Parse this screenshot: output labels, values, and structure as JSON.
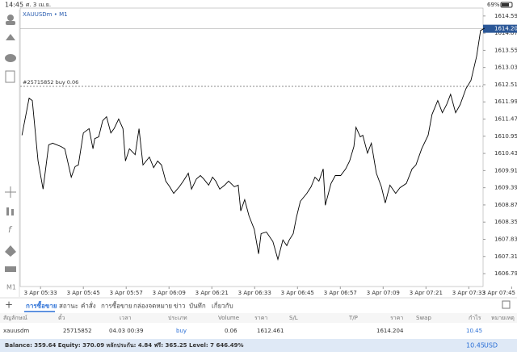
{
  "status_bar": {
    "time": "14:45",
    "date": "ศ. 3 เม.ย.",
    "battery": "69%"
  },
  "chart_data": {
    "type": "line",
    "title": "XAUUSDm • M1",
    "color": "#000000",
    "x": [
      327.8,
      329.8,
      330.7,
      332.3,
      333.7,
      335.3,
      336.4,
      338.7,
      339.8,
      341.6,
      342.7,
      343.6,
      345.0,
      346.6,
      347.7,
      348.2,
      349.3,
      350.4,
      351.5,
      352.7,
      353.6,
      354.9,
      356.1,
      356.8,
      357.9,
      359.5,
      360.6,
      361.7,
      363.5,
      364.7,
      365.8,
      366.9,
      368.1,
      369.2,
      370.3,
      371.9,
      373.0,
      374.4,
      375.3,
      376.7,
      377.8,
      378.7,
      380.1,
      381.2,
      382.1,
      383.2,
      384.6,
      385.7,
      387.3,
      388.4,
      389.1,
      390.2,
      391.4,
      392.9,
      394.1,
      394.8,
      396.3,
      398.1,
      399.5,
      400.9,
      402.0,
      402.7,
      403.8,
      404.7,
      405.8,
      407.6,
      408.8,
      409.9,
      411.0,
      412.2,
      412.8,
      414.4,
      415.6,
      417.1,
      418.5,
      419.6,
      420.8,
      421.4,
      422.6,
      423.3,
      424.6,
      425.7,
      427.1,
      428.5,
      429.6,
      430.9,
      432.5,
      433.7,
      435.5,
      437.1,
      438.2,
      439.8,
      441.6,
      442.7,
      444.3,
      445.6,
      446.8,
      447.9,
      449.3,
      450.6,
      452.2,
      453.6,
      455.2,
      456.3,
      457.4
    ],
    "values": [
      1610.98,
      1612.1,
      1612.03,
      1610.2,
      1609.35,
      1610.69,
      1610.74,
      1610.64,
      1610.57,
      1609.71,
      1610.03,
      1610.08,
      1611.05,
      1611.18,
      1610.57,
      1610.88,
      1610.93,
      1611.42,
      1611.54,
      1611.05,
      1611.18,
      1611.47,
      1611.18,
      1610.2,
      1610.57,
      1610.39,
      1611.18,
      1610.08,
      1610.32,
      1610.0,
      1610.2,
      1610.08,
      1609.59,
      1609.42,
      1609.22,
      1609.42,
      1609.59,
      1609.83,
      1609.35,
      1609.66,
      1609.76,
      1609.66,
      1609.47,
      1609.71,
      1609.59,
      1609.35,
      1609.47,
      1609.59,
      1609.42,
      1609.47,
      1608.69,
      1609.03,
      1608.54,
      1608.13,
      1607.39,
      1608.0,
      1608.05,
      1607.76,
      1607.22,
      1607.81,
      1607.64,
      1607.81,
      1608.0,
      1608.49,
      1608.98,
      1609.22,
      1609.42,
      1609.71,
      1609.59,
      1609.96,
      1608.86,
      1609.52,
      1609.76,
      1609.76,
      1609.96,
      1610.2,
      1610.64,
      1611.22,
      1610.93,
      1610.98,
      1610.44,
      1610.74,
      1609.83,
      1609.42,
      1608.93,
      1609.47,
      1609.22,
      1609.39,
      1609.52,
      1609.96,
      1610.08,
      1610.57,
      1610.98,
      1611.61,
      1612.03,
      1611.66,
      1611.91,
      1612.22,
      1611.66,
      1611.91,
      1612.39,
      1612.64,
      1613.37,
      1614.15,
      1614.22
    ],
    "xlim": [
      327.3,
      457.0
    ],
    "xticks": [
      {
        "value": 333,
        "label": "3 Apr 05:33"
      },
      {
        "value": 345,
        "label": "3 Apr 05:45"
      },
      {
        "value": 357,
        "label": "3 Apr 05:57"
      },
      {
        "value": 369,
        "label": "3 Apr 06:09"
      },
      {
        "value": 381,
        "label": "3 Apr 06:21"
      },
      {
        "value": 393,
        "label": "3 Apr 06:33"
      },
      {
        "value": 405,
        "label": "3 Apr 06:45"
      },
      {
        "value": 417,
        "label": "3 Apr 06:57"
      },
      {
        "value": 429,
        "label": "3 Apr 07:09"
      },
      {
        "value": 441,
        "label": "3 Apr 07:21"
      },
      {
        "value": 453,
        "label": "3 Apr 07:33"
      },
      {
        "value": 465,
        "label": "3 Apr 07:45"
      }
    ],
    "ylim": [
      1606.4,
      1614.83
    ],
    "yticks": [
      {
        "value": 1614.59,
        "label": "1614.590"
      },
      {
        "value": 1614.07,
        "label": "1614.070"
      },
      {
        "value": 1613.55,
        "label": "1613.550"
      },
      {
        "value": 1613.03,
        "label": "1613.030"
      },
      {
        "value": 1612.51,
        "label": "1612.510"
      },
      {
        "value": 1611.99,
        "label": "1611.990"
      },
      {
        "value": 1611.47,
        "label": "1611.470"
      },
      {
        "value": 1610.95,
        "label": "1610.950"
      },
      {
        "value": 1610.43,
        "label": "1610.430"
      },
      {
        "value": 1609.91,
        "label": "1609.910"
      },
      {
        "value": 1609.39,
        "label": "1609.390"
      },
      {
        "value": 1608.87,
        "label": "1608.870"
      },
      {
        "value": 1608.35,
        "label": "1608.350"
      },
      {
        "value": 1607.83,
        "label": "1607.830"
      },
      {
        "value": 1607.31,
        "label": "1607.310"
      },
      {
        "value": 1606.79,
        "label": "1606.790"
      }
    ],
    "grid": false,
    "current_price": 1614.204,
    "order_line": {
      "label": "#25715852 buy 0.06",
      "price": 1612.461
    }
  },
  "toolbar": {
    "timeframe": "M1"
  },
  "tabs": [
    "การซื้อขาย",
    "สถานะ",
    "คำสั่ง",
    "การซื้อขาย",
    "กล่องจดหมาย",
    "ข่าว",
    "บันทึก",
    "เกี่ยวกับ"
  ],
  "table": {
    "header": [
      "สัญลักษณ์",
      "ตั๋ว",
      "เวลา",
      "ประเภท",
      "Volume",
      "ราคา",
      "S/L",
      "T/P",
      "ราคา",
      "Swap",
      "กำไร",
      "หมายเหตุ"
    ],
    "row": [
      "xauusdm",
      "25715852",
      "04.03 00:39",
      "buy",
      "0.06",
      "1612.461",
      "1614.204",
      "10.45"
    ]
  },
  "balance": {
    "text": "Balance: 359.64 Equity: 370.09 หลักประกัน: 4.84 ฟรี: 365.25 Level: 7 646.49%",
    "profit": "10.45",
    "currency": "USD"
  }
}
